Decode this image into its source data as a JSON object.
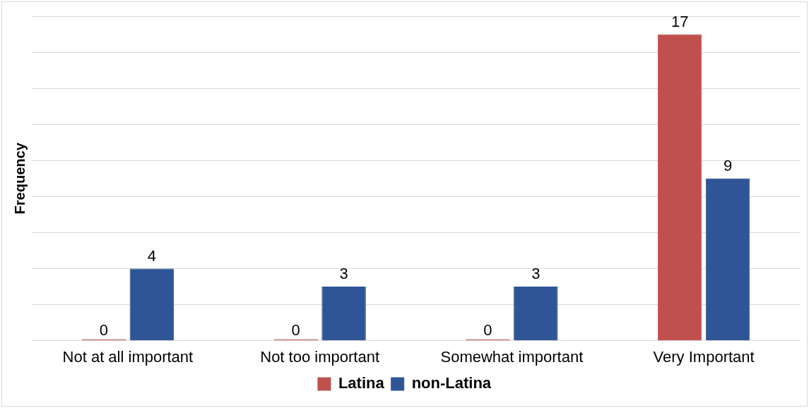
{
  "chart_data": {
    "type": "bar",
    "ylabel": "Frequency",
    "categories": [
      "Not at all important",
      "Not too important",
      "Somewhat important",
      "Very Important"
    ],
    "series": [
      {
        "name": "Latina",
        "color": "#c0504d",
        "values": [
          0,
          0,
          0,
          17
        ]
      },
      {
        "name": "non-Latina",
        "color": "#2f5597",
        "values": [
          4,
          3,
          3,
          9
        ]
      }
    ],
    "ylim": [
      0,
      18
    ],
    "yticks": [
      {
        "value": 0,
        "label": null
      },
      {
        "value": 2,
        "label": null
      },
      {
        "value": 4,
        "label": null
      },
      {
        "value": 6,
        "label": null
      },
      {
        "value": 8,
        "label": null
      },
      {
        "value": 10,
        "label": null
      },
      {
        "value": 12,
        "label": null
      },
      {
        "value": 14,
        "label": null
      },
      {
        "value": 16,
        "label": null
      },
      {
        "value": 18,
        "label": null
      }
    ],
    "grid": "y",
    "tick_labels": "x",
    "legend": "bottom",
    "data_labels": true
  }
}
